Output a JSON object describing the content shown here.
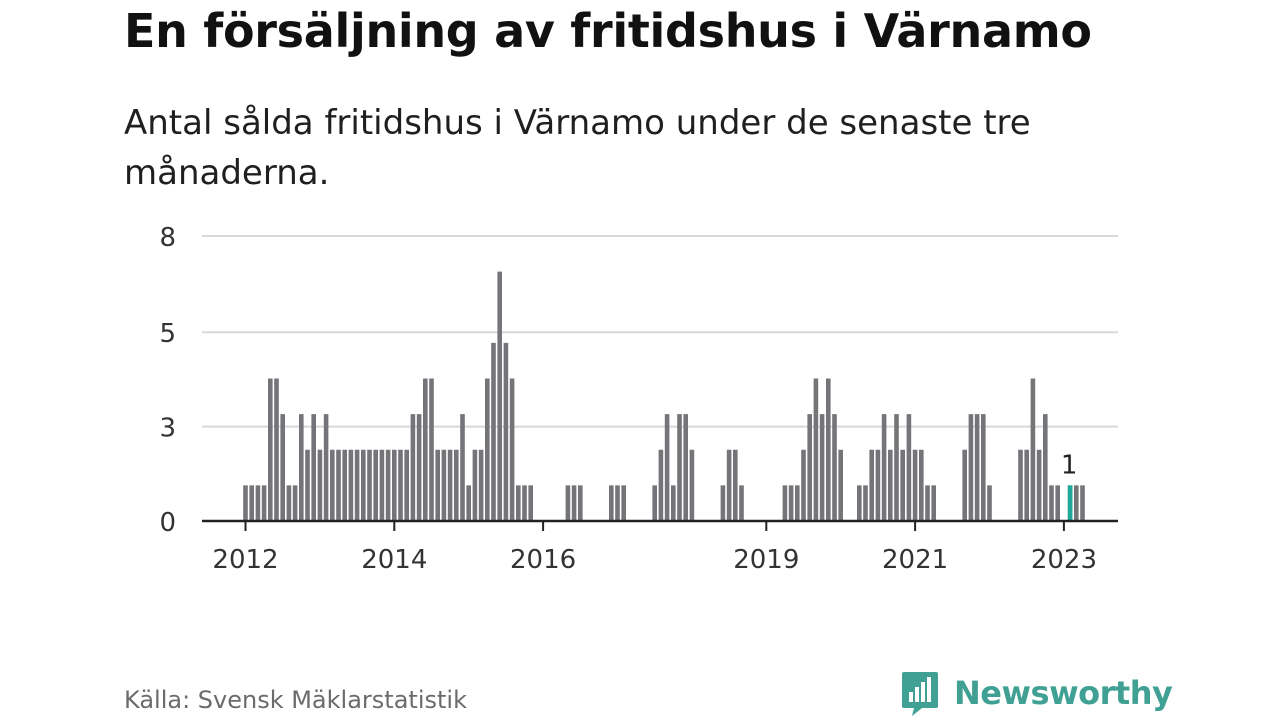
{
  "title": "En försäljning av fritidshus i Värnamo",
  "subtitle": "Antal sålda fritidshus i Värnamo under de senaste tre månaderna.",
  "source": "Källa: Svensk Mäklarstatistik",
  "brand": "Newsworthy",
  "colors": {
    "bar": "#757579",
    "highlight": "#1fa79a",
    "grid": "#d8d8d8",
    "axis": "#222222",
    "brand": "#3fa093"
  },
  "chart_data": {
    "type": "bar",
    "title": "En försäljning av fritidshus i Värnamo",
    "ylim": [
      0,
      8
    ],
    "yticks": [
      {
        "label": "8",
        "value": 8
      },
      {
        "label": "5",
        "value": 5.3
      },
      {
        "label": "3",
        "value": 2.65
      },
      {
        "label": "0",
        "value": 0
      }
    ],
    "x_start": "2012-01",
    "xticks": [
      {
        "label": "2012",
        "index": 0
      },
      {
        "label": "2014",
        "index": 24
      },
      {
        "label": "2016",
        "index": 48
      },
      {
        "label": "2019",
        "index": 84
      },
      {
        "label": "2021",
        "index": 108
      },
      {
        "label": "2023",
        "index": 132
      }
    ],
    "values": [
      1,
      1,
      1,
      1,
      4,
      4,
      3,
      1,
      1,
      3,
      2,
      3,
      2,
      3,
      2,
      2,
      2,
      2,
      2,
      2,
      2,
      2,
      2,
      2,
      2,
      2,
      2,
      3,
      3,
      4,
      4,
      2,
      2,
      2,
      2,
      3,
      1,
      2,
      2,
      4,
      5,
      7,
      5,
      4,
      1,
      1,
      1,
      0,
      0,
      0,
      0,
      0,
      1,
      1,
      1,
      0,
      0,
      0,
      0,
      1,
      1,
      1,
      0,
      0,
      0,
      0,
      1,
      2,
      3,
      1,
      3,
      3,
      2,
      0,
      0,
      0,
      0,
      1,
      2,
      2,
      1,
      0,
      0,
      0,
      0,
      0,
      0,
      1,
      1,
      1,
      2,
      3,
      4,
      3,
      4,
      3,
      2,
      0,
      0,
      1,
      1,
      2,
      2,
      3,
      2,
      3,
      2,
      3,
      2,
      2,
      1,
      1,
      0,
      0,
      0,
      0,
      2,
      3,
      3,
      3,
      1,
      0,
      0,
      0,
      0,
      2,
      2,
      4,
      2,
      3,
      1,
      1,
      0,
      1,
      1,
      1
    ],
    "highlight_index": 133,
    "highlight_label": "1"
  }
}
